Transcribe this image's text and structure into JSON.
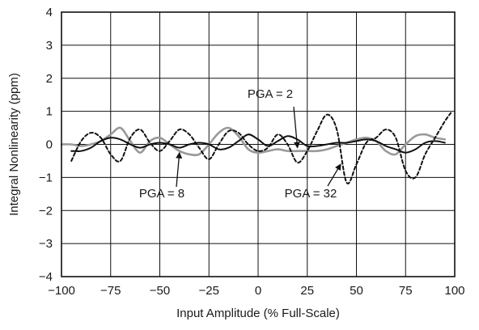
{
  "chart_data": {
    "type": "line",
    "title": "",
    "xlabel": "Input Amplitude (% Full-Scale)",
    "ylabel": "Integral Nonlinearity (ppm)",
    "xlim": [
      -100,
      100
    ],
    "ylim": [
      -4,
      4
    ],
    "x_ticks": [
      -100,
      -75,
      -50,
      -25,
      0,
      25,
      50,
      75,
      100
    ],
    "x_tick_labels": [
      "−100",
      "−75",
      "−50",
      "−25",
      "0",
      "25",
      "50",
      "75",
      "100"
    ],
    "y_ticks": [
      -4,
      -3,
      -2,
      -1,
      0,
      1,
      2,
      3,
      4
    ],
    "y_tick_labels": [
      "−4",
      "−3",
      "−2",
      "−1",
      "0",
      "1",
      "2",
      "3",
      "4"
    ],
    "grid": true,
    "legend": "none",
    "series": [
      {
        "name": "PGA = 2",
        "style": "solid-black",
        "color": "#111111",
        "x": [
          -95,
          -90,
          -85,
          -80,
          -75,
          -70,
          -65,
          -60,
          -55,
          -50,
          -45,
          -40,
          -35,
          -30,
          -25,
          -20,
          -15,
          -10,
          -5,
          0,
          5,
          10,
          15,
          20,
          25,
          30,
          35,
          40,
          45,
          50,
          55,
          60,
          65,
          70,
          75,
          80,
          85,
          90,
          95
        ],
        "values": [
          -0.2,
          -0.2,
          -0.1,
          0.1,
          0.2,
          0.15,
          0.0,
          -0.1,
          0.0,
          0.05,
          0.0,
          -0.1,
          0.0,
          0.05,
          0.0,
          -0.15,
          -0.1,
          0.1,
          0.3,
          0.15,
          -0.05,
          0.1,
          0.25,
          0.15,
          -0.05,
          -0.05,
          0.0,
          0.05,
          0.05,
          0.1,
          0.15,
          0.1,
          -0.05,
          -0.15,
          -0.25,
          -0.15,
          0.05,
          0.1,
          0.05
        ]
      },
      {
        "name": "PGA = 8",
        "style": "solid-gray",
        "color": "#999999",
        "x": [
          -100,
          -95,
          -90,
          -85,
          -80,
          -75,
          -70,
          -65,
          -60,
          -55,
          -50,
          -45,
          -40,
          -35,
          -30,
          -25,
          -20,
          -15,
          -10,
          -5,
          0,
          5,
          10,
          15,
          20,
          25,
          30,
          35,
          40,
          45,
          50,
          55,
          60,
          65,
          70,
          75,
          80,
          85,
          90,
          95
        ],
        "values": [
          0.0,
          0.0,
          -0.05,
          0.0,
          0.1,
          0.3,
          0.5,
          0.1,
          -0.25,
          0.1,
          0.2,
          0.0,
          -0.2,
          -0.3,
          -0.3,
          0.0,
          0.35,
          0.5,
          0.25,
          -0.15,
          -0.25,
          -0.2,
          -0.15,
          -0.2,
          -0.2,
          -0.2,
          -0.2,
          -0.15,
          -0.05,
          0.05,
          0.15,
          0.2,
          0.1,
          -0.2,
          -0.3,
          0.0,
          0.25,
          0.3,
          0.2,
          0.15
        ]
      },
      {
        "name": "PGA = 32",
        "style": "dashed-black",
        "color": "#111111",
        "x": [
          -95,
          -90,
          -85,
          -80,
          -75,
          -70,
          -65,
          -60,
          -55,
          -50,
          -45,
          -40,
          -35,
          -30,
          -25,
          -20,
          -15,
          -10,
          -5,
          0,
          5,
          10,
          15,
          20,
          25,
          30,
          35,
          40,
          45,
          50,
          55,
          60,
          65,
          70,
          75,
          80,
          85,
          90,
          95,
          98
        ],
        "values": [
          -0.5,
          0.1,
          0.35,
          0.2,
          -0.3,
          -0.5,
          0.2,
          0.45,
          0.05,
          -0.2,
          0.1,
          0.45,
          0.3,
          -0.1,
          -0.45,
          0.0,
          0.4,
          0.35,
          0.0,
          -0.2,
          -0.1,
          0.3,
          0.0,
          -0.55,
          -0.2,
          0.4,
          0.9,
          0.45,
          -1.15,
          -0.6,
          0.05,
          0.2,
          0.45,
          0.2,
          -0.8,
          -1.0,
          -0.3,
          0.2,
          0.7,
          0.95
        ]
      }
    ],
    "annotations": [
      {
        "text": "PGA = 2",
        "points_to": {
          "x": 20,
          "y": -0.1
        }
      },
      {
        "text": "PGA = 8",
        "points_to": {
          "x": -40,
          "y": -0.25
        }
      },
      {
        "text": "PGA = 32",
        "points_to": {
          "x": 42,
          "y": -0.6
        }
      }
    ]
  }
}
